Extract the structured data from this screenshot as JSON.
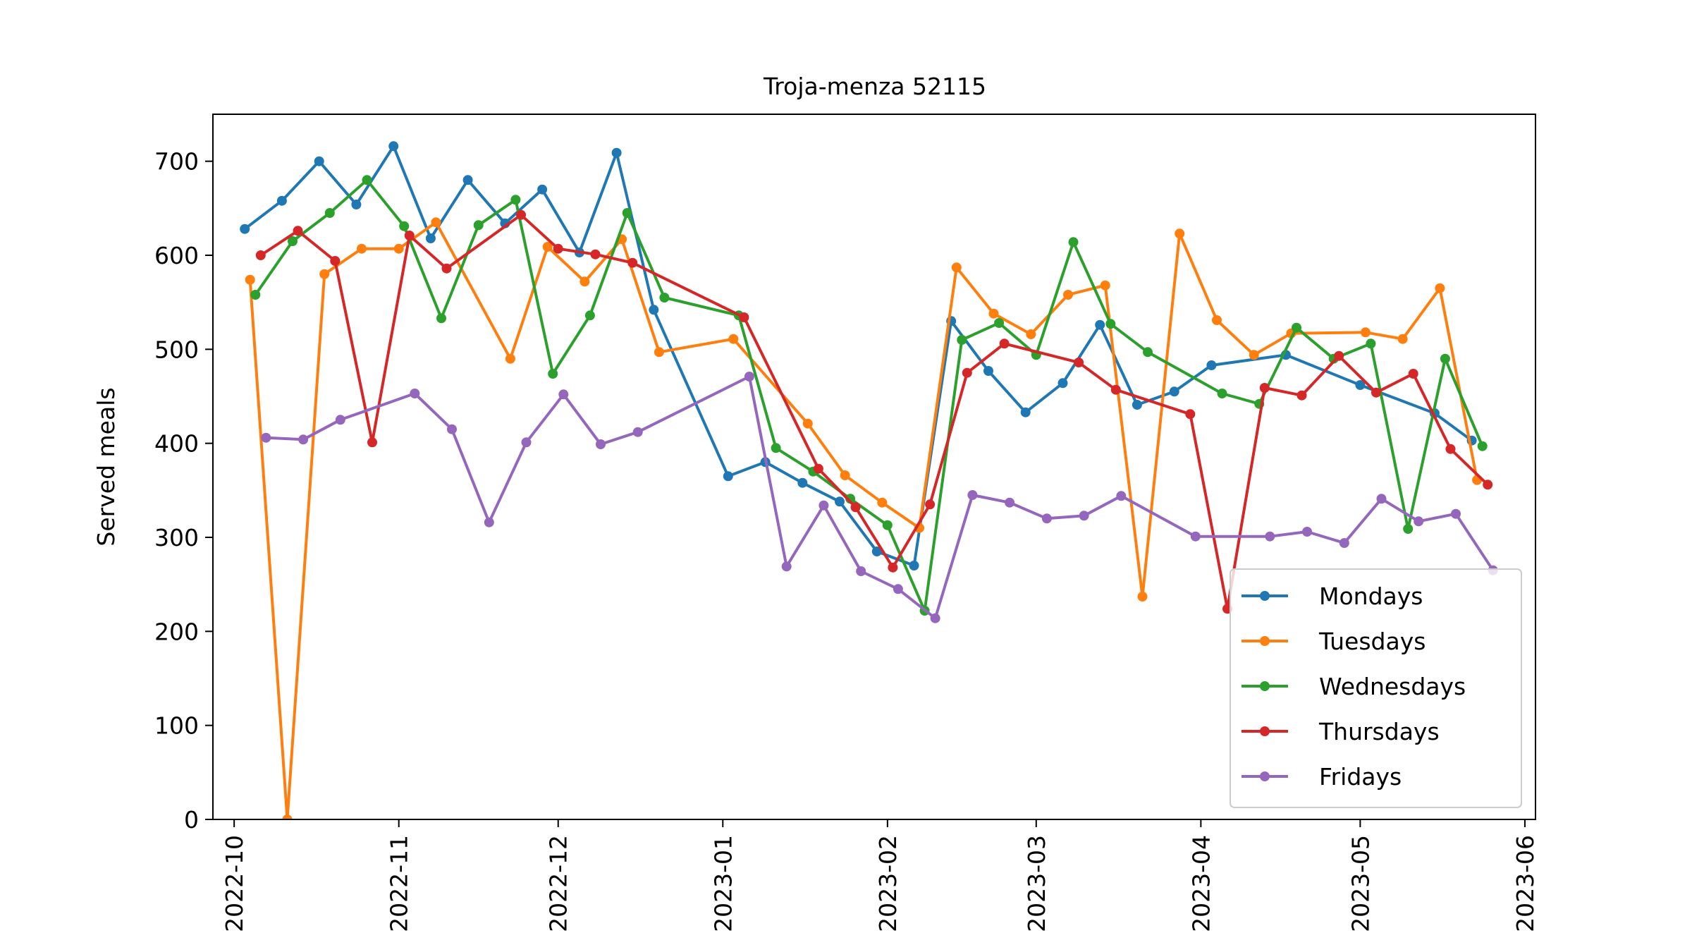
{
  "chart_data": {
    "type": "line",
    "title": "Troja-menza 52115",
    "xlabel": "",
    "ylabel": "Served meals",
    "ylim": [
      0,
      750
    ],
    "xlim": [
      "2022-09-27",
      "2023-06-03"
    ],
    "y_ticks": [
      "0",
      "100",
      "200",
      "300",
      "400",
      "500",
      "600",
      "700"
    ],
    "x_ticks": [
      {
        "date": "2022-10-01",
        "label": "2022-10"
      },
      {
        "date": "2022-11-01",
        "label": "2022-11"
      },
      {
        "date": "2022-12-01",
        "label": "2022-12"
      },
      {
        "date": "2023-01-01",
        "label": "2023-01"
      },
      {
        "date": "2023-02-01",
        "label": "2023-02"
      },
      {
        "date": "2023-03-01",
        "label": "2023-03"
      },
      {
        "date": "2023-04-01",
        "label": "2023-04"
      },
      {
        "date": "2023-05-01",
        "label": "2023-05"
      },
      {
        "date": "2023-06-01",
        "label": "2023-06"
      }
    ],
    "grid": false,
    "legend_position": "lower-right",
    "series": [
      {
        "name": "Mondays",
        "color": "#1f77b4",
        "points": [
          [
            "2022-10-03",
            628
          ],
          [
            "2022-10-10",
            658
          ],
          [
            "2022-10-17",
            700
          ],
          [
            "2022-10-24",
            654
          ],
          [
            "2022-10-31",
            716
          ],
          [
            "2022-11-07",
            618
          ],
          [
            "2022-11-14",
            680
          ],
          [
            "2022-11-21",
            634
          ],
          [
            "2022-11-28",
            670
          ],
          [
            "2022-12-05",
            603
          ],
          [
            "2022-12-12",
            709
          ],
          [
            "2022-12-19",
            542
          ],
          [
            "2023-01-02",
            365
          ],
          [
            "2023-01-09",
            380
          ],
          [
            "2023-01-16",
            358
          ],
          [
            "2023-01-23",
            338
          ],
          [
            "2023-01-30",
            285
          ],
          [
            "2023-02-06",
            270
          ],
          [
            "2023-02-13",
            530
          ],
          [
            "2023-02-20",
            477
          ],
          [
            "2023-02-27",
            433
          ],
          [
            "2023-03-06",
            464
          ],
          [
            "2023-03-13",
            526
          ],
          [
            "2023-03-20",
            441
          ],
          [
            "2023-03-27",
            455
          ],
          [
            "2023-04-03",
            483
          ],
          [
            "2023-04-17",
            494
          ],
          [
            "2023-05-01",
            462
          ],
          [
            "2023-05-15",
            432
          ],
          [
            "2023-05-22",
            403
          ]
        ]
      },
      {
        "name": "Tuesdays",
        "color": "#ff7f0e",
        "points": [
          [
            "2022-10-04",
            574
          ],
          [
            "2022-10-11",
            0
          ],
          [
            "2022-10-18",
            580
          ],
          [
            "2022-10-25",
            607
          ],
          [
            "2022-11-01",
            607
          ],
          [
            "2022-11-08",
            635
          ],
          [
            "2022-11-22",
            490
          ],
          [
            "2022-11-29",
            609
          ],
          [
            "2022-12-06",
            572
          ],
          [
            "2022-12-13",
            617
          ],
          [
            "2022-12-20",
            497
          ],
          [
            "2023-01-03",
            511
          ],
          [
            "2023-01-17",
            421
          ],
          [
            "2023-01-24",
            366
          ],
          [
            "2023-01-31",
            337
          ],
          [
            "2023-02-07",
            310
          ],
          [
            "2023-02-14",
            587
          ],
          [
            "2023-02-21",
            538
          ],
          [
            "2023-02-28",
            516
          ],
          [
            "2023-03-07",
            558
          ],
          [
            "2023-03-14",
            568
          ],
          [
            "2023-03-21",
            237
          ],
          [
            "2023-03-28",
            623
          ],
          [
            "2023-04-04",
            531
          ],
          [
            "2023-04-11",
            494
          ],
          [
            "2023-04-18",
            517
          ],
          [
            "2023-05-02",
            518
          ],
          [
            "2023-05-09",
            511
          ],
          [
            "2023-05-16",
            565
          ],
          [
            "2023-05-23",
            361
          ]
        ]
      },
      {
        "name": "Wednesdays",
        "color": "#2ca02c",
        "points": [
          [
            "2022-10-05",
            558
          ],
          [
            "2022-10-12",
            615
          ],
          [
            "2022-10-19",
            645
          ],
          [
            "2022-10-26",
            680
          ],
          [
            "2022-11-02",
            631
          ],
          [
            "2022-11-09",
            533
          ],
          [
            "2022-11-16",
            632
          ],
          [
            "2022-11-23",
            659
          ],
          [
            "2022-11-30",
            474
          ],
          [
            "2022-12-07",
            536
          ],
          [
            "2022-12-14",
            645
          ],
          [
            "2022-12-21",
            555
          ],
          [
            "2023-01-04",
            536
          ],
          [
            "2023-01-11",
            395
          ],
          [
            "2023-01-18",
            370
          ],
          [
            "2023-01-25",
            341
          ],
          [
            "2023-02-01",
            313
          ],
          [
            "2023-02-08",
            222
          ],
          [
            "2023-02-15",
            510
          ],
          [
            "2023-02-22",
            528
          ],
          [
            "2023-03-01",
            494
          ],
          [
            "2023-03-08",
            614
          ],
          [
            "2023-03-15",
            527
          ],
          [
            "2023-03-22",
            497
          ],
          [
            "2023-04-05",
            453
          ],
          [
            "2023-04-12",
            442
          ],
          [
            "2023-04-19",
            523
          ],
          [
            "2023-04-26",
            490
          ],
          [
            "2023-05-03",
            506
          ],
          [
            "2023-05-10",
            309
          ],
          [
            "2023-05-17",
            490
          ],
          [
            "2023-05-24",
            397
          ]
        ]
      },
      {
        "name": "Thursdays",
        "color": "#d62728",
        "points": [
          [
            "2022-10-06",
            600
          ],
          [
            "2022-10-13",
            626
          ],
          [
            "2022-10-20",
            594
          ],
          [
            "2022-10-27",
            401
          ],
          [
            "2022-11-03",
            621
          ],
          [
            "2022-11-10",
            586
          ],
          [
            "2022-11-24",
            643
          ],
          [
            "2022-12-01",
            607
          ],
          [
            "2022-12-08",
            601
          ],
          [
            "2022-12-15",
            592
          ],
          [
            "2023-01-05",
            534
          ],
          [
            "2023-01-19",
            373
          ],
          [
            "2023-01-26",
            332
          ],
          [
            "2023-02-02",
            268
          ],
          [
            "2023-02-09",
            335
          ],
          [
            "2023-02-16",
            475
          ],
          [
            "2023-02-23",
            506
          ],
          [
            "2023-03-09",
            486
          ],
          [
            "2023-03-16",
            457
          ],
          [
            "2023-03-30",
            431
          ],
          [
            "2023-04-06",
            224
          ],
          [
            "2023-04-13",
            459
          ],
          [
            "2023-04-20",
            451
          ],
          [
            "2023-04-27",
            493
          ],
          [
            "2023-05-04",
            454
          ],
          [
            "2023-05-11",
            474
          ],
          [
            "2023-05-18",
            394
          ],
          [
            "2023-05-25",
            356
          ]
        ]
      },
      {
        "name": "Fridays",
        "color": "#9467bd",
        "points": [
          [
            "2022-10-07",
            406
          ],
          [
            "2022-10-14",
            404
          ],
          [
            "2022-10-21",
            425
          ],
          [
            "2022-11-04",
            453
          ],
          [
            "2022-11-11",
            415
          ],
          [
            "2022-11-18",
            316
          ],
          [
            "2022-11-25",
            401
          ],
          [
            "2022-12-02",
            452
          ],
          [
            "2022-12-09",
            399
          ],
          [
            "2022-12-16",
            412
          ],
          [
            "2023-01-06",
            471
          ],
          [
            "2023-01-13",
            269
          ],
          [
            "2023-01-20",
            334
          ],
          [
            "2023-01-27",
            264
          ],
          [
            "2023-02-03",
            245
          ],
          [
            "2023-02-10",
            214
          ],
          [
            "2023-02-17",
            345
          ],
          [
            "2023-02-24",
            337
          ],
          [
            "2023-03-03",
            320
          ],
          [
            "2023-03-10",
            323
          ],
          [
            "2023-03-17",
            344
          ],
          [
            "2023-03-31",
            301
          ],
          [
            "2023-04-14",
            301
          ],
          [
            "2023-04-21",
            306
          ],
          [
            "2023-04-28",
            294
          ],
          [
            "2023-05-05",
            341
          ],
          [
            "2023-05-12",
            317
          ],
          [
            "2023-05-19",
            325
          ],
          [
            "2023-05-26",
            265
          ]
        ]
      }
    ]
  }
}
